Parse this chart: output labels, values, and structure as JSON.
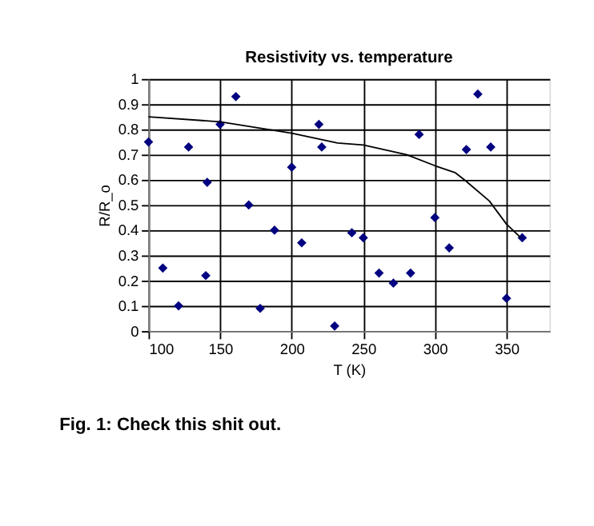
{
  "chart_data": {
    "type": "scatter",
    "title": "Resistivity vs. temperature",
    "xlabel": "T (K)",
    "ylabel": "R/R_o",
    "xlim": [
      100,
      380
    ],
    "xticks": [
      100,
      150,
      200,
      250,
      300,
      350
    ],
    "ylim": [
      0,
      1
    ],
    "yticks": [
      0,
      0.1,
      0.2,
      0.3,
      0.4,
      0.5,
      0.6,
      0.7,
      0.8,
      0.9,
      1
    ],
    "grid": true,
    "annotations": [
      "Fig. 1: Check this shit out."
    ],
    "series": [
      {
        "color": "#000080",
        "marker": "diamond",
        "x": [
          100,
          110,
          121,
          128,
          141,
          140,
          150,
          161,
          170,
          178,
          188,
          200,
          207,
          219,
          221,
          230,
          242,
          250,
          261,
          271,
          283,
          289,
          300,
          310,
          322,
          330,
          339,
          350,
          361
        ],
        "values": [
          0.75,
          0.25,
          0.1,
          0.73,
          0.59,
          0.22,
          0.82,
          0.93,
          0.5,
          0.09,
          0.4,
          0.65,
          0.35,
          0.82,
          0.73,
          0.02,
          0.39,
          0.37,
          0.23,
          0.19,
          0.23,
          0.78,
          0.45,
          0.33,
          0.72,
          0.94,
          0.73,
          0.13,
          0.37
        ]
      },
      {
        "type": "line",
        "color": "#000000",
        "marker": "none",
        "line_style": "solid",
        "x": [
          100,
          150,
          200,
          232,
          250,
          280,
          300,
          314,
          321,
          338,
          350,
          360
        ],
        "values": [
          0.85,
          0.83,
          0.785,
          0.746,
          0.738,
          0.7,
          0.656,
          0.629,
          0.598,
          0.516,
          0.424,
          0.37
        ]
      }
    ]
  }
}
